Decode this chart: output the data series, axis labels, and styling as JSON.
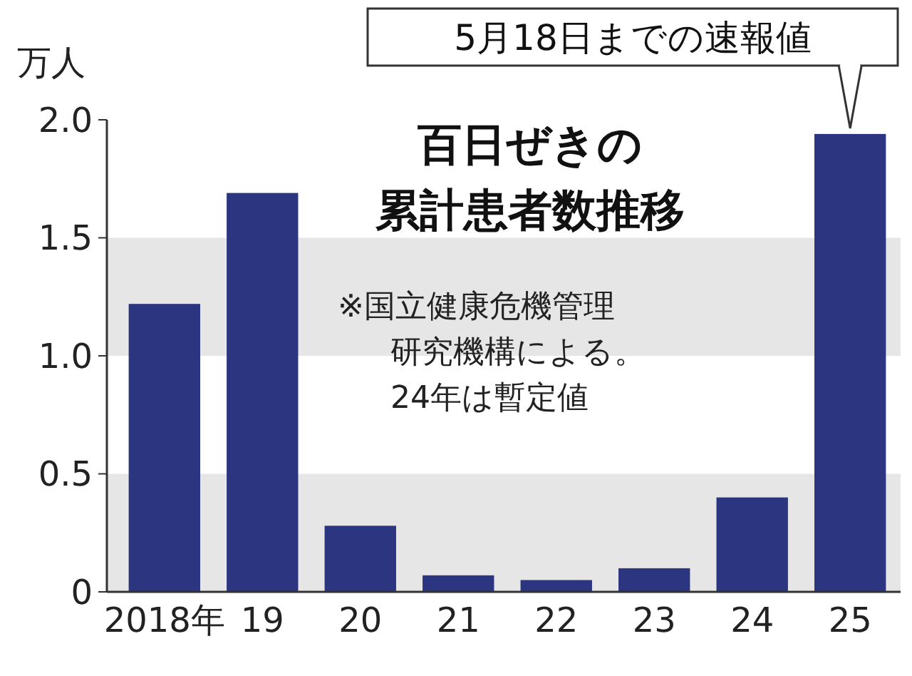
{
  "chart_data": {
    "type": "bar",
    "title": "百日ぜきの累計患者数推移",
    "ylabel": "万人",
    "categories": [
      "2018年",
      "19",
      "20",
      "21",
      "22",
      "23",
      "24",
      "25"
    ],
    "values": [
      1.22,
      1.69,
      0.28,
      0.07,
      0.05,
      0.1,
      0.4,
      1.94
    ],
    "color": "#2b3580",
    "ylim": [
      0,
      2
    ],
    "yticks": [
      {
        "value": 0,
        "label": "0"
      },
      0.5,
      {
        "value": 1,
        "label": "1.0"
      },
      1.5,
      {
        "value": 2,
        "label": "2.0"
      }
    ],
    "bands": [
      {
        "axis": "y",
        "from": 0,
        "to": 0.5,
        "color": "#e6e6e6"
      },
      {
        "axis": "y",
        "from": 1,
        "to": 1.5,
        "color": "#e6e6e6"
      }
    ],
    "annotations": [
      {
        "text": "5月18日までの速報値",
        "x": "25",
        "y": 1.94
      },
      "※国立健康危機管理研究機構による。24年は暫定値"
    ]
  }
}
